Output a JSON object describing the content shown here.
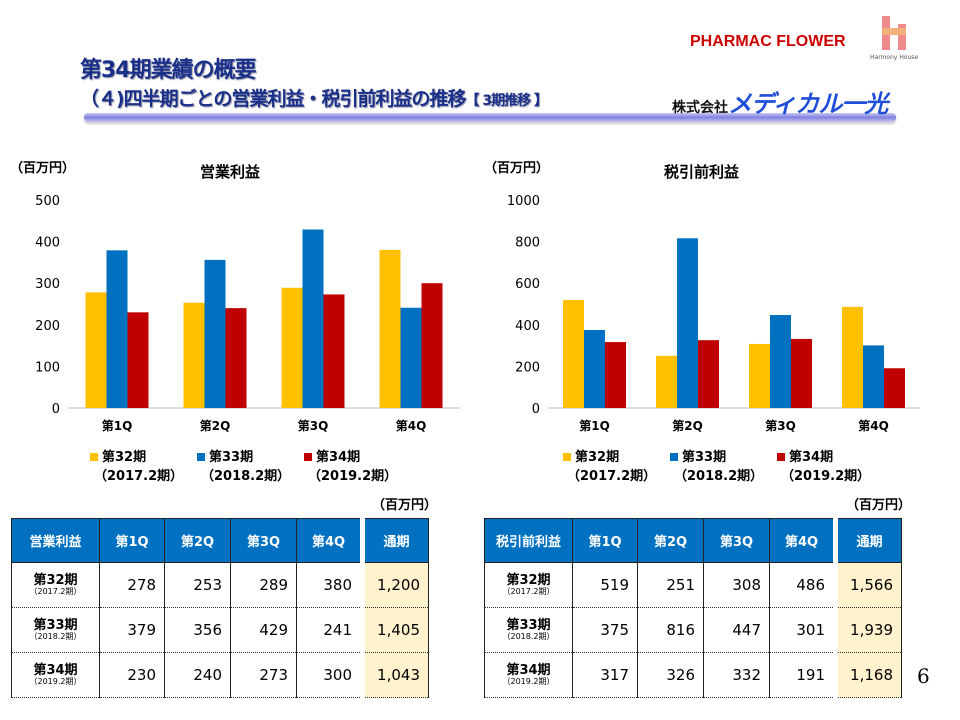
{
  "header": {
    "title": "第34期業績の概要",
    "subtitle": "（４)四半期ごとの営業利益・税引前利益の推移",
    "subtitle_tag": "【 3期推移 】",
    "company_prefix": "株式会社",
    "company_brand": "メディカル一光",
    "logo_pharmacy": "PHARMAC FLOWER",
    "logo_harmony": "Harmony House"
  },
  "colors": {
    "period32": "#FFC000",
    "period33": "#0070C0",
    "period34": "#C00000",
    "header_blue": "#0070C0",
    "total_bg": "#FFF2CC"
  },
  "legend": [
    {
      "name": "第32期",
      "sub": "（2017.2期）"
    },
    {
      "name": "第33期",
      "sub": "（2018.2期）"
    },
    {
      "name": "第34期",
      "sub": "（2019.2期）"
    }
  ],
  "chart_data": [
    {
      "type": "bar",
      "title": "営業利益",
      "unit": "（百万円）",
      "categories": [
        "第1Q",
        "第2Q",
        "第3Q",
        "第4Q"
      ],
      "ylim": [
        0,
        500
      ],
      "yticks": [
        0,
        100,
        200,
        300,
        400,
        500
      ],
      "grid": false,
      "legend": "bottom",
      "series": [
        {
          "name": "第32期（2017.2期）",
          "values": [
            278,
            253,
            289,
            380
          ]
        },
        {
          "name": "第33期（2018.2期）",
          "values": [
            379,
            356,
            429,
            241
          ]
        },
        {
          "name": "第34期（2019.2期）",
          "values": [
            230,
            240,
            273,
            300
          ]
        }
      ]
    },
    {
      "type": "bar",
      "title": "税引前利益",
      "unit": "（百万円）",
      "categories": [
        "第1Q",
        "第2Q",
        "第3Q",
        "第4Q"
      ],
      "ylim": [
        0,
        1000
      ],
      "yticks": [
        0,
        200,
        400,
        600,
        800,
        1000
      ],
      "grid": false,
      "legend": "bottom",
      "series": [
        {
          "name": "第32期（2017.2期）",
          "values": [
            519,
            251,
            308,
            486
          ]
        },
        {
          "name": "第33期（2018.2期）",
          "values": [
            375,
            816,
            447,
            301
          ]
        },
        {
          "name": "第34期（2019.2期）",
          "values": [
            317,
            326,
            332,
            191
          ]
        }
      ]
    }
  ],
  "tables": [
    {
      "unit": "（百万円）",
      "headers": [
        "営業利益",
        "第1Q",
        "第2Q",
        "第3Q",
        "第4Q",
        "通期"
      ],
      "rows": [
        {
          "label": "第32期",
          "sub": "（2017.2期）",
          "values": [
            "278",
            "253",
            "289",
            "380"
          ],
          "total": "1,200"
        },
        {
          "label": "第33期",
          "sub": "（2018.2期）",
          "values": [
            "379",
            "356",
            "429",
            "241"
          ],
          "total": "1,405"
        },
        {
          "label": "第34期",
          "sub": "（2019.2期）",
          "values": [
            "230",
            "240",
            "273",
            "300"
          ],
          "total": "1,043"
        }
      ]
    },
    {
      "unit": "（百万円）",
      "headers": [
        "税引前利益",
        "第1Q",
        "第2Q",
        "第3Q",
        "第4Q",
        "通期"
      ],
      "rows": [
        {
          "label": "第32期",
          "sub": "（2017.2期）",
          "values": [
            "519",
            "251",
            "308",
            "486"
          ],
          "total": "1,566"
        },
        {
          "label": "第33期",
          "sub": "（2018.2期）",
          "values": [
            "375",
            "816",
            "447",
            "301"
          ],
          "total": "1,939"
        },
        {
          "label": "第34期",
          "sub": "（2019.2期）",
          "values": [
            "317",
            "326",
            "332",
            "191"
          ],
          "total": "1,168"
        }
      ]
    }
  ],
  "page_number": "6"
}
